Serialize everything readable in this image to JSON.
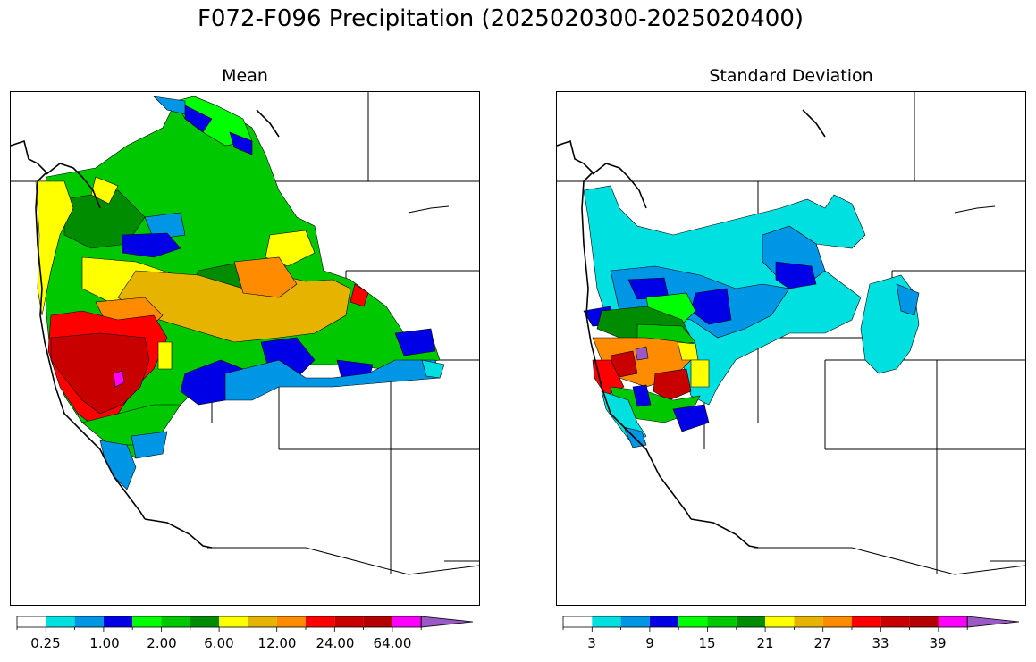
{
  "title": "F072-F096 Precipitation (2025020300-2025020400)",
  "panels": [
    {
      "id": "mean",
      "title": "Mean",
      "colorbar": {
        "colors": [
          "#ffffff",
          "#00e0e0",
          "#0096e6",
          "#0000e6",
          "#00ff00",
          "#00c800",
          "#008c00",
          "#ffff00",
          "#e6b400",
          "#ff8c00",
          "#ff0000",
          "#c80000",
          "#b40000",
          "#ff00ff",
          "#9b59c8"
        ],
        "tick_labels": [
          "0.25",
          "1.00",
          "2.00",
          "6.00",
          "12.00",
          "24.00",
          "64.00"
        ]
      }
    },
    {
      "id": "std",
      "title": "Standard Deviation",
      "colorbar": {
        "colors": [
          "#ffffff",
          "#00e0e0",
          "#0096e6",
          "#0000e6",
          "#00ff00",
          "#00c800",
          "#008c00",
          "#ffff00",
          "#e6b400",
          "#ff8c00",
          "#ff0000",
          "#c80000",
          "#b40000",
          "#ff00ff",
          "#9b59c8"
        ],
        "tick_labels": [
          "3",
          "9",
          "15",
          "21",
          "27",
          "33",
          "39"
        ]
      }
    }
  ],
  "colors": {
    "cyan": "#00e0e0",
    "lightblue": "#0096e6",
    "blue": "#0000e6",
    "lime": "#00ff00",
    "green": "#00c800",
    "darkgreen": "#008c00",
    "yellow": "#ffff00",
    "gold": "#e6b400",
    "orange": "#ff8c00",
    "red": "#ff0000",
    "darkred": "#c80000",
    "magenta": "#ff00ff",
    "purple": "#9b59c8"
  }
}
